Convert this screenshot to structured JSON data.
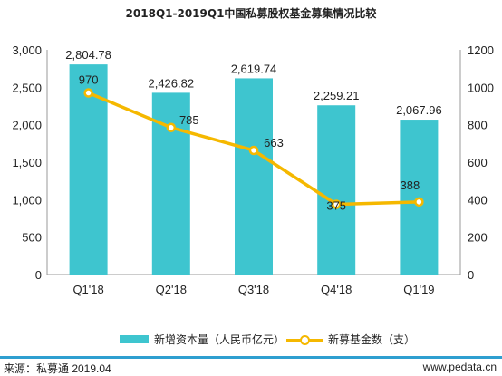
{
  "title": "2018Q1-2019Q1中国私募股权基金募集情况比较",
  "chart_data": {
    "type": "bar",
    "categories": [
      "Q1'18",
      "Q2'18",
      "Q3'18",
      "Q4'18",
      "Q1'19"
    ],
    "series": [
      {
        "name": "新增资本量（人民币亿元）",
        "type": "bar",
        "axis": "left",
        "values": [
          2804.78,
          2426.82,
          2619.74,
          2259.21,
          2067.96
        ],
        "labels": [
          "2,804.78",
          "2,426.82",
          "2,619.74",
          "2,259.21",
          "2,067.96"
        ],
        "color": "#3ec5cf"
      },
      {
        "name": "新募基金数（支）",
        "type": "line",
        "axis": "right",
        "values": [
          970,
          785,
          663,
          375,
          388
        ],
        "labels": [
          "970",
          "785",
          "663",
          "375",
          "388"
        ],
        "color": "#f5b800"
      }
    ],
    "ylim_left": [
      0,
      3000
    ],
    "yticks_left": [
      0,
      500,
      1000,
      1500,
      2000,
      2500,
      3000
    ],
    "ytick_labels_left": [
      "0",
      "500",
      "1,000",
      "1,500",
      "2,000",
      "2,500",
      "3,000"
    ],
    "ylim_right": [
      0,
      1200
    ],
    "yticks_right": [
      0,
      200,
      400,
      600,
      800,
      1000,
      1200
    ],
    "ytick_labels_right": [
      "0",
      "200",
      "400",
      "600",
      "800",
      "1000",
      "1200"
    ],
    "grid": false,
    "legend_position": "bottom"
  },
  "legend": {
    "bar_label": "新增资本量（人民币亿元）",
    "line_label": "新募基金数（支）"
  },
  "footer": {
    "source": "来源：私募通 2019.04",
    "url": "www.pedata.cn"
  }
}
